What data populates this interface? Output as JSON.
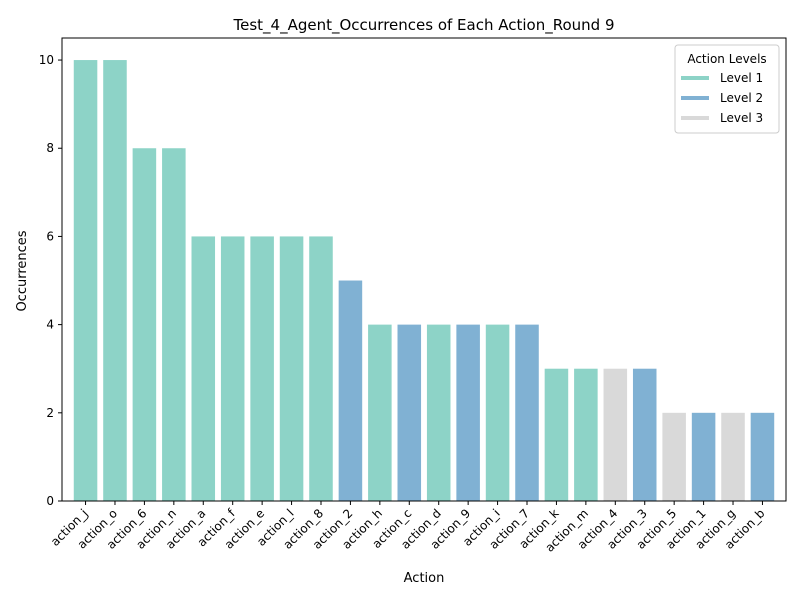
{
  "chart_data": {
    "type": "bar",
    "title": "Test_4_Agent_Occurrences of Each Action_Round 9",
    "xlabel": "Action",
    "ylabel": "Occurrences",
    "ylim": [
      0,
      10.5
    ],
    "yticks": [
      0,
      2,
      4,
      6,
      8,
      10
    ],
    "grid": false,
    "categories": [
      "action_j",
      "action_o",
      "action_6",
      "action_n",
      "action_a",
      "action_f",
      "action_e",
      "action_l",
      "action_8",
      "action_2",
      "action_h",
      "action_c",
      "action_d",
      "action_9",
      "action_i",
      "action_7",
      "action_k",
      "action_m",
      "action_4",
      "action_3",
      "action_5",
      "action_1",
      "action_g",
      "action_b"
    ],
    "values": [
      10,
      10,
      8,
      8,
      6,
      6,
      6,
      6,
      6,
      5,
      4,
      4,
      4,
      4,
      4,
      4,
      3,
      3,
      3,
      3,
      2,
      2,
      2,
      2
    ],
    "levels": [
      "Level 1",
      "Level 1",
      "Level 1",
      "Level 1",
      "Level 1",
      "Level 1",
      "Level 1",
      "Level 1",
      "Level 1",
      "Level 2",
      "Level 1",
      "Level 2",
      "Level 1",
      "Level 2",
      "Level 1",
      "Level 2",
      "Level 1",
      "Level 1",
      "Level 3",
      "Level 2",
      "Level 3",
      "Level 2",
      "Level 3",
      "Level 2"
    ],
    "legend": {
      "title": "Action Levels",
      "placement": "top-right",
      "entries": [
        {
          "name": "Level 1",
          "color": "#8dd3c7"
        },
        {
          "name": "Level 2",
          "color": "#80b1d3"
        },
        {
          "name": "Level 3",
          "color": "#d9d9d9"
        }
      ]
    }
  }
}
